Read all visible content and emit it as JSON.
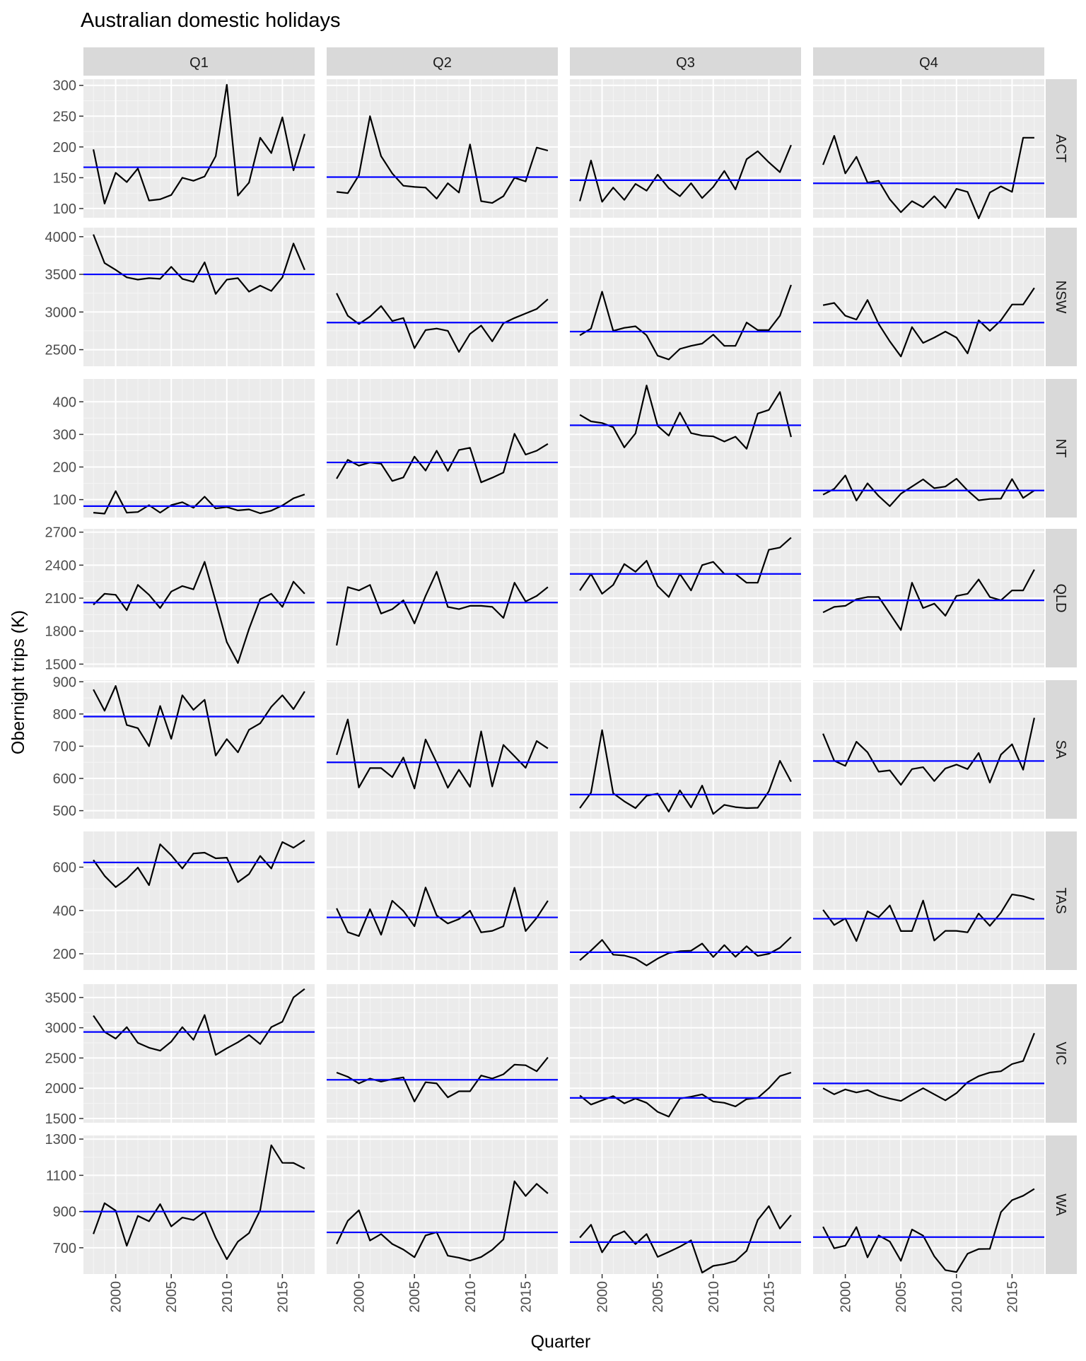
{
  "title": "Australian domestic holidays",
  "xlabel": "Quarter",
  "ylabel": "Obernight trips (K)",
  "chart_data": {
    "type": "line",
    "title": "Australian domestic holidays",
    "xlabel": "Quarter",
    "ylabel": "Obernight trips (K)",
    "facet_cols": [
      "Q1",
      "Q2",
      "Q3",
      "Q4"
    ],
    "facet_rows": [
      "ACT",
      "NSW",
      "NT",
      "QLD",
      "SA",
      "TAS",
      "VIC",
      "WA"
    ],
    "x": [
      1998,
      1999,
      2000,
      2001,
      2002,
      2003,
      2004,
      2005,
      2006,
      2007,
      2008,
      2009,
      2010,
      2011,
      2012,
      2013,
      2014,
      2015,
      2016,
      2017
    ],
    "x_ticks": [
      2000,
      2005,
      2010,
      2015
    ],
    "xlim": [
      1997.1,
      2017.9
    ],
    "grid": true,
    "series_color": "#000000",
    "mean_color": "#0000ff",
    "rows": [
      {
        "region": "ACT",
        "ylim": [
          85,
          310
        ],
        "y_ticks": [
          100,
          150,
          200,
          250,
          300
        ],
        "panels": [
          {
            "quarter": "Q1",
            "mean": 167,
            "values": [
              196,
              108,
              158,
              143,
              165,
              113,
              115,
              122,
              150,
              145,
              152,
              185,
              301,
              121,
              142,
              215,
              190,
              248,
              162,
              221
            ]
          },
          {
            "quarter": "Q2",
            "mean": 151,
            "values": [
              127,
              125,
              154,
              250,
              185,
              157,
              137,
              135,
              134,
              116,
              141,
              126,
              204,
              112,
              109,
              120,
              150,
              144,
              199,
              194
            ]
          },
          {
            "quarter": "Q3",
            "mean": 146,
            "values": [
              112,
              178,
              111,
              134,
              114,
              140,
              129,
              155,
              133,
              120,
              141,
              117,
              135,
              161,
              131,
              180,
              193,
              175,
              159,
              203
            ]
          },
          {
            "quarter": "Q4",
            "mean": 141,
            "values": [
              171,
              218,
              157,
              184,
              142,
              145,
              115,
              94,
              112,
              102,
              120,
              101,
              132,
              127,
              84,
              126,
              136,
              127,
              215,
              215
            ]
          }
        ]
      },
      {
        "region": "NSW",
        "ylim": [
          2280,
          4120
        ],
        "y_ticks": [
          2500,
          3000,
          3500,
          4000
        ],
        "panels": [
          {
            "quarter": "Q1",
            "mean": 3500,
            "values": [
              4030,
              3650,
              3560,
              3460,
              3430,
              3450,
              3440,
              3600,
              3440,
              3400,
              3660,
              3240,
              3430,
              3450,
              3270,
              3350,
              3280,
              3460,
              3910,
              3560
            ]
          },
          {
            "quarter": "Q2",
            "mean": 2860,
            "values": [
              3250,
              2950,
              2840,
              2940,
              3080,
              2880,
              2920,
              2520,
              2760,
              2780,
              2750,
              2470,
              2710,
              2820,
              2610,
              2850,
              2920,
              2980,
              3040,
              3170
            ]
          },
          {
            "quarter": "Q3",
            "mean": 2740,
            "values": [
              2690,
              2780,
              3270,
              2750,
              2790,
              2810,
              2690,
              2420,
              2370,
              2510,
              2550,
              2580,
              2700,
              2550,
              2550,
              2860,
              2760,
              2760,
              2950,
              3360
            ]
          },
          {
            "quarter": "Q4",
            "mean": 2860,
            "values": [
              3090,
              3120,
              2950,
              2900,
              3160,
              2840,
              2610,
              2410,
              2800,
              2590,
              2660,
              2740,
              2660,
              2450,
              2890,
              2750,
              2890,
              3100,
              3100,
              3320
            ]
          }
        ]
      },
      {
        "region": "NT",
        "ylim": [
          45,
          470
        ],
        "y_ticks": [
          100,
          200,
          300,
          400
        ],
        "panels": [
          {
            "quarter": "Q1",
            "mean": 80,
            "values": [
              60,
              57,
              126,
              60,
              62,
              83,
              60,
              83,
              92,
              75,
              109,
              73,
              77,
              67,
              70,
              58,
              66,
              82,
              104,
              116
            ]
          },
          {
            "quarter": "Q2",
            "mean": 214,
            "values": [
              164,
              222,
              204,
              214,
              210,
              157,
              168,
              232,
              189,
              250,
              188,
              252,
              259,
              153,
              167,
              183,
              302,
              238,
              250,
              271
            ]
          },
          {
            "quarter": "Q3",
            "mean": 328,
            "values": [
              360,
              340,
              335,
              322,
              260,
              303,
              450,
              326,
              296,
              367,
              304,
              296,
              294,
              278,
              293,
              256,
              364,
              375,
              430,
              292
            ]
          },
          {
            "quarter": "Q4",
            "mean": 128,
            "values": [
              115,
              133,
              174,
              97,
              150,
              111,
              80,
              118,
              140,
              162,
              135,
              140,
              164,
              128,
              98,
              102,
              103,
              163,
              105,
              128
            ]
          }
        ]
      },
      {
        "region": "QLD",
        "ylim": [
          1470,
          2730
        ],
        "y_ticks": [
          1500,
          1800,
          2100,
          2400,
          2700
        ],
        "panels": [
          {
            "quarter": "Q1",
            "mean": 2060,
            "values": [
              2040,
              2140,
              2130,
              1990,
              2220,
              2130,
              2010,
              2160,
              2210,
              2180,
              2430,
              2070,
              1700,
              1510,
              1820,
              2090,
              2140,
              2020,
              2250,
              2140
            ]
          },
          {
            "quarter": "Q2",
            "mean": 2060,
            "values": [
              1670,
              2200,
              2170,
              2220,
              1960,
              2000,
              2080,
              1870,
              2120,
              2340,
              2020,
              2000,
              2030,
              2030,
              2020,
              1920,
              2240,
              2070,
              2120,
              2200
            ]
          },
          {
            "quarter": "Q3",
            "mean": 2320,
            "values": [
              2170,
              2320,
              2140,
              2220,
              2410,
              2340,
              2440,
              2210,
              2110,
              2320,
              2170,
              2400,
              2430,
              2320,
              2320,
              2240,
              2240,
              2540,
              2560,
              2650
            ]
          },
          {
            "quarter": "Q4",
            "mean": 2080,
            "values": [
              1970,
              2020,
              2030,
              2090,
              2110,
              2110,
              1960,
              1810,
              2240,
              2010,
              2050,
              1940,
              2120,
              2140,
              2270,
              2110,
              2080,
              2170,
              2170,
              2360
            ]
          }
        ]
      },
      {
        "region": "SA",
        "ylim": [
          475,
          905
        ],
        "y_ticks": [
          500,
          600,
          700,
          800,
          900
        ],
        "panels": [
          {
            "quarter": "Q1",
            "mean": 792,
            "values": [
              876,
              810,
              887,
              766,
              756,
              700,
              825,
              723,
              858,
              813,
              844,
              671,
              722,
              681,
              751,
              771,
              822,
              858,
              815,
              870
            ]
          },
          {
            "quarter": "Q2",
            "mean": 650,
            "values": [
              673,
              783,
              572,
              632,
              632,
              604,
              665,
              569,
              721,
              649,
              571,
              627,
              574,
              746,
              575,
              704,
              669,
              633,
              716,
              693
            ]
          },
          {
            "quarter": "Q3",
            "mean": 550,
            "values": [
              508,
              556,
              750,
              554,
              529,
              508,
              546,
              553,
              497,
              563,
              510,
              578,
              490,
              518,
              511,
              508,
              509,
              560,
              655,
              590
            ]
          },
          {
            "quarter": "Q4",
            "mean": 654,
            "values": [
              739,
              655,
              639,
              714,
              681,
              621,
              625,
              580,
              629,
              635,
              592,
              631,
              643,
              629,
              679,
              587,
              674,
              706,
              627,
              788
            ]
          }
        ]
      },
      {
        "region": "TAS",
        "ylim": [
          125,
          765
        ],
        "y_ticks": [
          200,
          400,
          600
        ],
        "panels": [
          {
            "quarter": "Q1",
            "mean": 622,
            "values": [
              633,
              560,
              508,
              546,
              598,
              517,
              706,
              655,
              594,
              663,
              667,
              641,
              644,
              531,
              568,
              652,
              594,
              716,
              690,
              724
            ]
          },
          {
            "quarter": "Q2",
            "mean": 368,
            "values": [
              410,
              300,
              282,
              406,
              288,
              445,
              398,
              327,
              506,
              377,
              340,
              360,
              399,
              299,
              306,
              327,
              505,
              305,
              366,
              445
            ]
          },
          {
            "quarter": "Q3",
            "mean": 207,
            "values": [
              170,
              215,
              264,
              196,
              192,
              178,
              146,
              178,
              203,
              212,
              214,
              247,
              185,
              240,
              186,
              235,
              190,
              200,
              228,
              277
            ]
          },
          {
            "quarter": "Q4",
            "mean": 362,
            "values": [
              403,
              333,
              363,
              259,
              396,
              369,
              423,
              305,
              305,
              446,
              261,
              306,
              306,
              299,
              386,
              329,
              390,
              474,
              466,
              450
            ]
          }
        ]
      },
      {
        "region": "VIC",
        "ylim": [
          1430,
          3720
        ],
        "y_ticks": [
          1500,
          2000,
          2500,
          3000,
          3500
        ],
        "panels": [
          {
            "quarter": "Q1",
            "mean": 2930,
            "values": [
              3200,
              2930,
              2820,
              3010,
              2750,
              2670,
              2620,
              2770,
              3010,
              2800,
              3210,
              2550,
              2660,
              2760,
              2880,
              2730,
              3010,
              3100,
              3500,
              3640
            ]
          },
          {
            "quarter": "Q2",
            "mean": 2140,
            "values": [
              2260,
              2190,
              2080,
              2160,
              2110,
              2150,
              2180,
              1780,
              2100,
              2080,
              1850,
              1950,
              1950,
              2210,
              2160,
              2230,
              2390,
              2380,
              2280,
              2510
            ]
          },
          {
            "quarter": "Q3",
            "mean": 1840,
            "values": [
              1880,
              1730,
              1800,
              1870,
              1750,
              1830,
              1760,
              1610,
              1530,
              1830,
              1860,
              1900,
              1780,
              1760,
              1700,
              1820,
              1840,
              2000,
              2200,
              2260
            ]
          },
          {
            "quarter": "Q4",
            "mean": 2080,
            "values": [
              2000,
              1900,
              1980,
              1930,
              1970,
              1880,
              1830,
              1790,
              1900,
              2000,
              1900,
              1800,
              1920,
              2100,
              2200,
              2260,
              2280,
              2400,
              2450,
              2910
            ]
          }
        ]
      },
      {
        "region": "WA",
        "ylim": [
          555,
          1320
        ],
        "y_ticks": [
          700,
          900,
          1100,
          1300
        ],
        "panels": [
          {
            "quarter": "Q1",
            "mean": 900,
            "values": [
              776,
              946,
              905,
              711,
              876,
              846,
              941,
              818,
              867,
              853,
              899,
              755,
              637,
              734,
              781,
              908,
              1266,
              1169,
              1168,
              1137
            ]
          },
          {
            "quarter": "Q2",
            "mean": 785,
            "values": [
              721,
              849,
              907,
              740,
              776,
              721,
              690,
              648,
              768,
              786,
              656,
              645,
              629,
              649,
              689,
              746,
              1067,
              986,
              1053,
              1000
            ]
          },
          {
            "quarter": "Q3",
            "mean": 731,
            "values": [
              756,
              827,
              675,
              764,
              791,
              720,
              776,
              650,
              677,
              706,
              741,
              563,
              600,
              610,
              627,
              683,
              853,
              930,
              806,
              880
            ]
          },
          {
            "quarter": "Q4",
            "mean": 759,
            "values": [
              816,
              697,
              712,
              814,
              647,
              768,
              734,
              628,
              801,
              767,
              653,
              577,
              566,
              667,
              693,
              694,
              897,
              963,
              987,
              1025
            ]
          }
        ]
      }
    ]
  }
}
